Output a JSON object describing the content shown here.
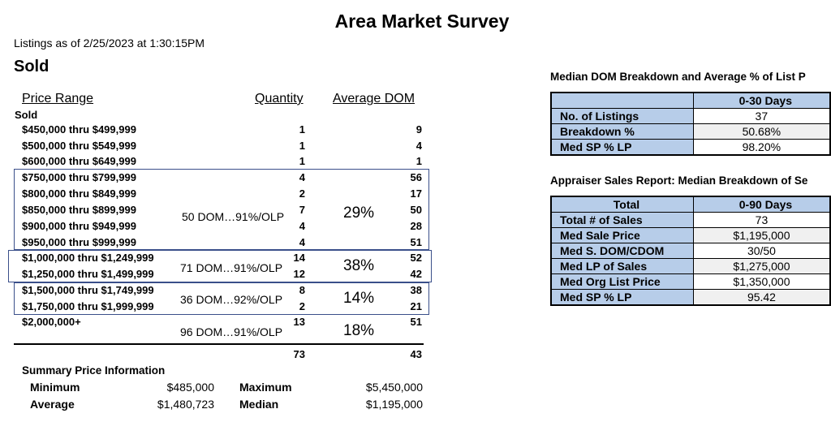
{
  "title": "Area Market Survey",
  "timestamp": "Listings as of 2/25/2023 at  1:30:15PM",
  "section": "Sold",
  "columns": {
    "range": "Price Range",
    "quantity": "Quantity",
    "dom": "Average DOM"
  },
  "subheading": "Sold",
  "rows": [
    {
      "range": "$450,000 thru $499,999",
      "quantity": "1",
      "dom": "9"
    },
    {
      "range": "$500,000 thru $549,999",
      "quantity": "1",
      "dom": "4"
    },
    {
      "range": "$600,000 thru $649,999",
      "quantity": "1",
      "dom": "1"
    },
    {
      "range": "$750,000 thru $799,999",
      "quantity": "4",
      "dom": "56"
    },
    {
      "range": "$800,000 thru $849,999",
      "quantity": "2",
      "dom": "17"
    },
    {
      "range": "$850,000 thru $899,999",
      "quantity": "7",
      "dom": "50"
    },
    {
      "range": "$900,000 thru $949,999",
      "quantity": "4",
      "dom": "28"
    },
    {
      "range": "$950,000 thru $999,999",
      "quantity": "4",
      "dom": "51"
    },
    {
      "range": "$1,000,000 thru $1,249,999",
      "quantity": "14",
      "dom": "52"
    },
    {
      "range": "$1,250,000 thru $1,499,999",
      "quantity": "12",
      "dom": "42"
    },
    {
      "range": "$1,500,000 thru $1,749,999",
      "quantity": "8",
      "dom": "38"
    },
    {
      "range": "$1,750,000 thru $1,999,999",
      "quantity": "2",
      "dom": "21"
    },
    {
      "range": "$2,000,000+",
      "quantity": "13",
      "dom": "51"
    }
  ],
  "annotations": [
    {
      "note": "50 DOM…91%/OLP",
      "pct": "29%"
    },
    {
      "note": "71 DOM…91%/OLP",
      "pct": "38%"
    },
    {
      "note": "36 DOM…92%/OLP",
      "pct": "14%"
    },
    {
      "note": "96 DOM…91%/OLP",
      "pct": "18%"
    }
  ],
  "totals": {
    "quantity": "73",
    "dom": "43"
  },
  "summary": {
    "title": "Summary Price Information",
    "minimum_label": "Minimum",
    "minimum": "$485,000",
    "maximum_label": "Maximum",
    "maximum": "$5,450,000",
    "average_label": "Average",
    "average": "$1,480,723",
    "median_label": "Median",
    "median": "$1,195,000"
  },
  "dom_breakdown": {
    "title": "Median DOM Breakdown and Average % of List P",
    "header": "0-30 Days",
    "rows": [
      {
        "label": "No. of Listings",
        "value": "37"
      },
      {
        "label": "Breakdown %",
        "value": "50.68%"
      },
      {
        "label": "Med SP % LP",
        "value": "98.20%"
      }
    ]
  },
  "appraiser": {
    "title": "Appraiser Sales Report: Median Breakdown of Se",
    "header_label": "Total",
    "header": "0-90 Days",
    "rows": [
      {
        "label": "Total # of Sales",
        "value": "73"
      },
      {
        "label": "Med Sale Price",
        "value": "$1,195,000"
      },
      {
        "label": "Med S. DOM/CDOM",
        "value": "30/50"
      },
      {
        "label": "Med LP of Sales",
        "value": "$1,275,000"
      },
      {
        "label": "Med Org List Price",
        "value": "$1,350,000"
      },
      {
        "label": "Med SP % LP",
        "value": "95.42"
      }
    ]
  }
}
